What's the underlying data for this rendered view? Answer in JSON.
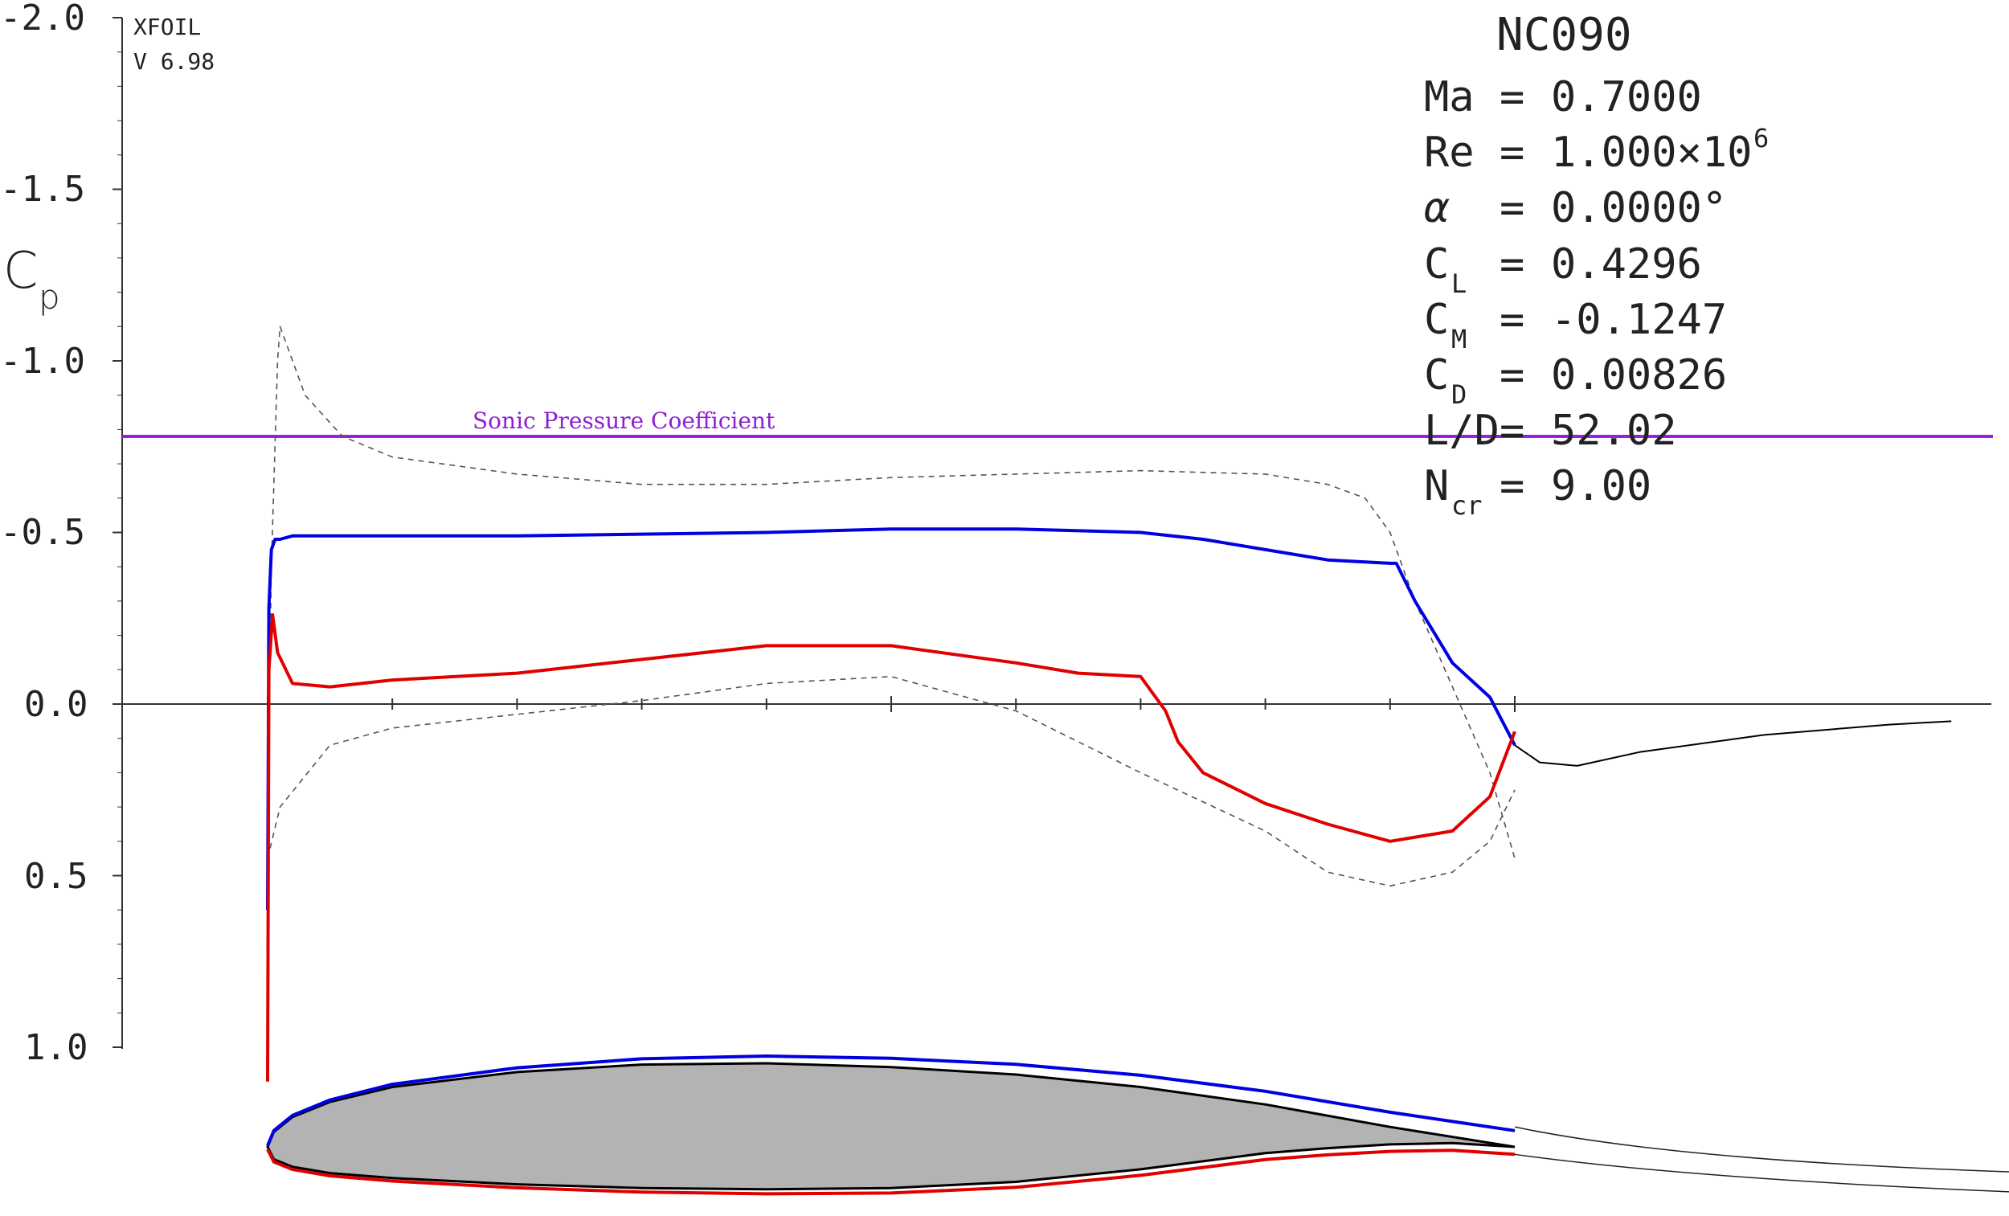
{
  "header": {
    "program": "XFOIL",
    "version": "V 6.98"
  },
  "airfoil_name": "NC090",
  "info": {
    "ma": {
      "label": "Ma",
      "value": "0.7000"
    },
    "re": {
      "label": "Re",
      "value": "1.000×10",
      "exponent": "6"
    },
    "alpha": {
      "label": "α",
      "value": "0.0000°"
    },
    "cl": {
      "label": "C",
      "sub": "L",
      "value": "0.4296"
    },
    "cm": {
      "label": "C",
      "sub": "M",
      "value": "-0.1247"
    },
    "cd": {
      "label": "C",
      "sub": "D",
      "value": "0.00826"
    },
    "ld": {
      "label": "L/D",
      "value": "52.02"
    },
    "ncr": {
      "label": "N",
      "sub": "cr",
      "value": "9.00"
    }
  },
  "colors": {
    "upper": "#0000e0",
    "lower": "#e00000",
    "sonic": "#9a1ee0",
    "wake": "#000000",
    "inviscid": "#555555",
    "airfoil_fill": "#b3b3b3",
    "axis": "#333333"
  },
  "chart_data": {
    "type": "line",
    "ylabel": "C",
    "ylabel_sub": "p",
    "ylim": [
      1.0,
      -2.0
    ],
    "y_inverted": true,
    "y_ticks": [
      "-2.0",
      "-1.5",
      "-1.0",
      "-0.5",
      "0.0",
      "0.5",
      "1.0"
    ],
    "y_tick_values": [
      -2.0,
      -1.5,
      -1.0,
      -0.5,
      0.0,
      0.5,
      1.0
    ],
    "xlim": [
      -0.1,
      1.35
    ],
    "sonic_cp": -0.78,
    "sonic_label": "Sonic Pressure Coefficient",
    "series": [
      {
        "key": "upper",
        "style": "solid",
        "x": [
          0.0,
          0.001,
          0.003,
          0.006,
          0.01,
          0.02,
          0.05,
          0.1,
          0.2,
          0.3,
          0.4,
          0.5,
          0.6,
          0.7,
          0.75,
          0.8,
          0.85,
          0.9,
          0.905,
          0.92,
          0.95,
          0.98,
          1.0
        ],
        "y": [
          0.6,
          -0.28,
          -0.45,
          -0.48,
          -0.48,
          -0.49,
          -0.49,
          -0.49,
          -0.49,
          -0.495,
          -0.5,
          -0.51,
          -0.51,
          -0.5,
          -0.48,
          -0.45,
          -0.42,
          -0.41,
          -0.41,
          -0.3,
          -0.12,
          -0.02,
          0.12
        ]
      },
      {
        "key": "lower",
        "style": "solid",
        "x": [
          0.0,
          0.001,
          0.004,
          0.008,
          0.02,
          0.05,
          0.1,
          0.2,
          0.3,
          0.4,
          0.5,
          0.6,
          0.65,
          0.7,
          0.72,
          0.73,
          0.75,
          0.8,
          0.85,
          0.9,
          0.95,
          0.98,
          1.0
        ],
        "y": [
          1.1,
          -0.1,
          -0.26,
          -0.15,
          -0.06,
          -0.05,
          -0.07,
          -0.09,
          -0.13,
          -0.17,
          -0.17,
          -0.12,
          -0.09,
          -0.08,
          0.02,
          0.11,
          0.2,
          0.29,
          0.35,
          0.4,
          0.37,
          0.27,
          0.08
        ]
      },
      {
        "key": "wake",
        "style": "solid",
        "x": [
          1.0,
          1.02,
          1.05,
          1.1,
          1.2,
          1.3,
          1.35
        ],
        "y": [
          0.12,
          0.17,
          0.18,
          0.14,
          0.09,
          0.06,
          0.05
        ]
      },
      {
        "key": "inviscid_upper",
        "style": "dashed",
        "x": [
          0.0,
          0.003,
          0.008,
          0.01,
          0.015,
          0.03,
          0.06,
          0.1,
          0.2,
          0.3,
          0.4,
          0.5,
          0.6,
          0.7,
          0.8,
          0.85,
          0.88,
          0.9,
          0.92,
          0.95,
          0.98,
          1.0
        ],
        "y": [
          0.3,
          -0.4,
          -1.0,
          -1.1,
          -1.05,
          -0.9,
          -0.78,
          -0.72,
          -0.67,
          -0.64,
          -0.64,
          -0.66,
          -0.67,
          -0.68,
          -0.67,
          -0.64,
          -0.6,
          -0.5,
          -0.3,
          -0.05,
          0.2,
          0.45
        ]
      },
      {
        "key": "inviscid_lower",
        "style": "dashed",
        "x": [
          0.0,
          0.01,
          0.05,
          0.1,
          0.2,
          0.3,
          0.4,
          0.5,
          0.6,
          0.7,
          0.8,
          0.85,
          0.9,
          0.95,
          0.98,
          1.0
        ],
        "y": [
          0.45,
          0.3,
          0.12,
          0.07,
          0.03,
          -0.01,
          -0.06,
          -0.08,
          0.02,
          0.2,
          0.37,
          0.49,
          0.53,
          0.49,
          0.4,
          0.25
        ]
      }
    ]
  },
  "airfoil": {
    "upper_x": [
      0.0,
      0.005,
      0.02,
      0.05,
      0.1,
      0.2,
      0.3,
      0.4,
      0.5,
      0.6,
      0.7,
      0.8,
      0.9,
      1.0
    ],
    "upper_y": [
      0.0,
      0.012,
      0.024,
      0.036,
      0.048,
      0.06,
      0.066,
      0.067,
      0.064,
      0.058,
      0.048,
      0.034,
      0.016,
      0.0
    ],
    "lower_x": [
      0.0,
      0.005,
      0.02,
      0.05,
      0.1,
      0.2,
      0.3,
      0.4,
      0.5,
      0.6,
      0.7,
      0.8,
      0.85,
      0.9,
      0.95,
      1.0
    ],
    "lower_y": [
      0.0,
      -0.01,
      -0.016,
      -0.021,
      -0.025,
      -0.03,
      -0.033,
      -0.034,
      -0.033,
      -0.028,
      -0.018,
      -0.005,
      -0.001,
      0.002,
      0.003,
      0.0
    ]
  }
}
